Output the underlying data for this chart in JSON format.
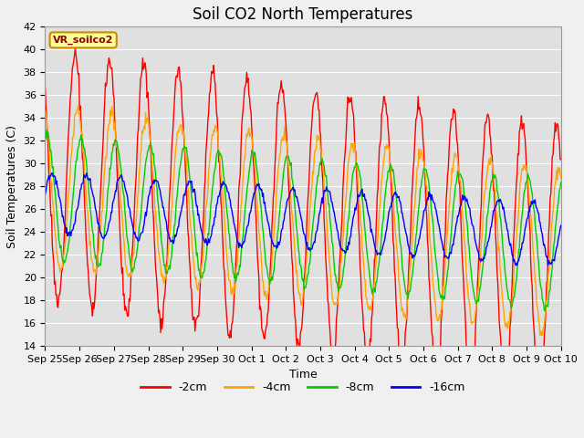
{
  "title": "Soil CO2 North Temperatures",
  "ylabel": "Soil Temperatures (C)",
  "xlabel": "Time",
  "xlabels": [
    "Sep 25",
    "Sep 26",
    "Sep 27",
    "Sep 28",
    "Sep 29",
    "Sep 30",
    "Oct 1",
    "Oct 2",
    "Oct 3",
    "Oct 4",
    "Oct 5",
    "Oct 6",
    "Oct 7",
    "Oct 8",
    "Oct 9",
    "Oct 10"
  ],
  "ylim": [
    14,
    42
  ],
  "yticks": [
    14,
    16,
    18,
    20,
    22,
    24,
    26,
    28,
    30,
    32,
    34,
    36,
    38,
    40,
    42
  ],
  "colors": {
    "-2cm": "#ff0000",
    "-4cm": "#ffa500",
    "-8cm": "#00cc00",
    "-16cm": "#0000ff"
  },
  "legend_label": "VR_soilco2",
  "fig_bg": "#f0f0f0",
  "plot_bg": "#e0e0e0",
  "title_fontsize": 12,
  "label_fontsize": 9,
  "tick_fontsize": 8
}
